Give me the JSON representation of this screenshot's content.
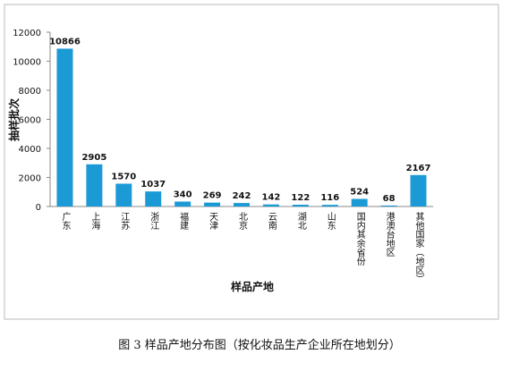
{
  "chart_data": {
    "type": "bar",
    "color": "#1b9ad6",
    "ylabel": "抽样批次",
    "xlabel": "样品产地",
    "caption": "图 3  样品产地分布图（按化妆品生产企业所在地划分）",
    "categories": [
      "广东",
      "上海",
      "江苏",
      "浙江",
      "福建",
      "天津",
      "北京",
      "云南",
      "湖北",
      "山东",
      "国内其余省份",
      "港澳台地区",
      "其他国家（地区）"
    ],
    "values": [
      10866,
      2905,
      1570,
      1037,
      340,
      269,
      242,
      142,
      122,
      116,
      524,
      68,
      2167
    ],
    "ylim": [
      0,
      12000
    ],
    "yticks": [
      0,
      2000,
      4000,
      6000,
      8000,
      10000,
      12000
    ],
    "grid": false
  }
}
